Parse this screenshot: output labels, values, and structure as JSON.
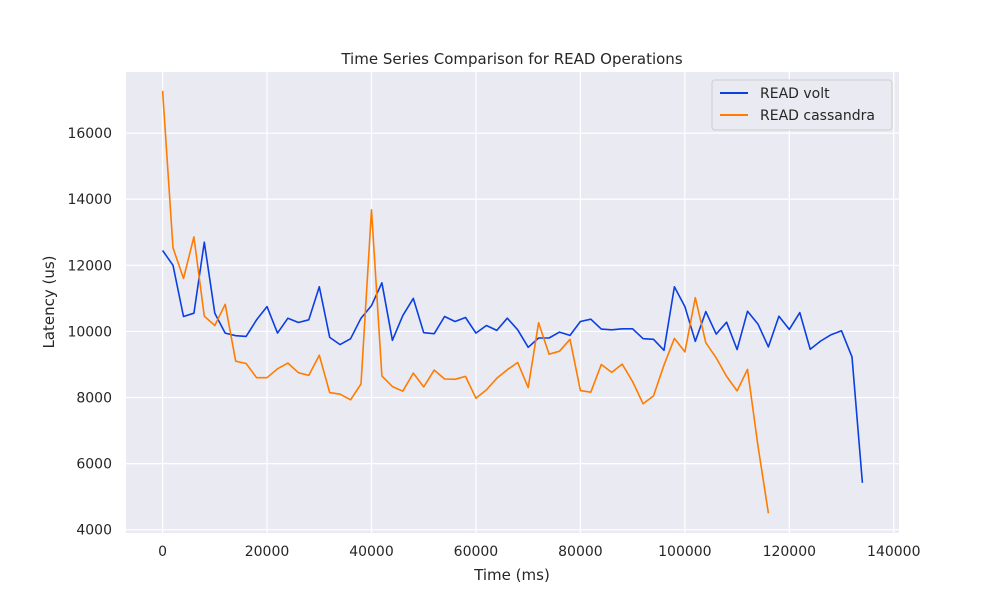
{
  "chart_data": {
    "type": "line",
    "title": "Time Series Comparison for READ Operations",
    "xlabel": "Time (ms)",
    "ylabel": "Latency (us)",
    "xlim": [
      -7000,
      141000
    ],
    "ylim": [
      3900,
      17850
    ],
    "xticks": [
      0,
      20000,
      40000,
      60000,
      80000,
      100000,
      120000,
      140000
    ],
    "yticks": [
      4000,
      6000,
      8000,
      10000,
      12000,
      14000,
      16000
    ],
    "grid": true,
    "legend_position": "top-right",
    "series": [
      {
        "name": "READ volt",
        "color": "#0b3fe1",
        "x": [
          0,
          2000,
          4000,
          6000,
          8000,
          10000,
          12000,
          14000,
          16000,
          18000,
          20000,
          22000,
          24000,
          26000,
          28000,
          30000,
          32000,
          34000,
          36000,
          38000,
          40000,
          42000,
          44000,
          46000,
          48000,
          50000,
          52000,
          54000,
          56000,
          58000,
          60000,
          62000,
          64000,
          66000,
          68000,
          70000,
          72000,
          74000,
          76000,
          78000,
          80000,
          82000,
          84000,
          86000,
          88000,
          90000,
          92000,
          94000,
          96000,
          98000,
          100000,
          102000,
          104000,
          106000,
          108000,
          110000,
          112000,
          114000,
          116000,
          118000,
          120000,
          122000,
          124000,
          126000,
          128000,
          130000,
          132000,
          134000
        ],
        "y": [
          12450,
          12000,
          10450,
          10550,
          12700,
          10550,
          9950,
          9870,
          9850,
          10350,
          10750,
          9950,
          10400,
          10270,
          10350,
          11350,
          9820,
          9600,
          9780,
          10400,
          10780,
          11470,
          9730,
          10480,
          11000,
          9960,
          9930,
          10450,
          10300,
          10420,
          9950,
          10180,
          10030,
          10400,
          10050,
          9520,
          9800,
          9800,
          9980,
          9880,
          10300,
          10370,
          10070,
          10050,
          10080,
          10080,
          9780,
          9760,
          9430,
          11350,
          10750,
          9700,
          10600,
          9920,
          10280,
          9450,
          10610,
          10220,
          9530,
          10460,
          10060,
          10570,
          9460,
          9710,
          9900,
          10020,
          9230,
          5420
        ]
      },
      {
        "name": "READ cassandra",
        "color": "#ff7c00",
        "x": [
          0,
          2000,
          4000,
          6000,
          8000,
          10000,
          12000,
          14000,
          16000,
          18000,
          20000,
          22000,
          24000,
          26000,
          28000,
          30000,
          32000,
          34000,
          36000,
          38000,
          40000,
          42000,
          44000,
          46000,
          48000,
          50000,
          52000,
          54000,
          56000,
          58000,
          60000,
          62000,
          64000,
          66000,
          68000,
          70000,
          72000,
          74000,
          76000,
          78000,
          80000,
          82000,
          84000,
          86000,
          88000,
          90000,
          92000,
          94000,
          96000,
          98000,
          100000,
          102000,
          104000,
          106000,
          108000,
          110000,
          112000,
          114000,
          116000
        ],
        "y": [
          17280,
          12530,
          11600,
          12860,
          10460,
          10180,
          10820,
          9100,
          9030,
          8600,
          8600,
          8870,
          9040,
          8750,
          8670,
          9280,
          8150,
          8100,
          7930,
          8410,
          13680,
          8650,
          8330,
          8190,
          8740,
          8320,
          8830,
          8560,
          8550,
          8640,
          7980,
          8230,
          8580,
          8840,
          9060,
          8300,
          10260,
          9310,
          9400,
          9760,
          8210,
          8160,
          9000,
          8760,
          9010,
          8480,
          7810,
          8050,
          8980,
          9790,
          9380,
          11020,
          9660,
          9200,
          8640,
          8200,
          8850,
          6530,
          4500
        ]
      }
    ]
  }
}
